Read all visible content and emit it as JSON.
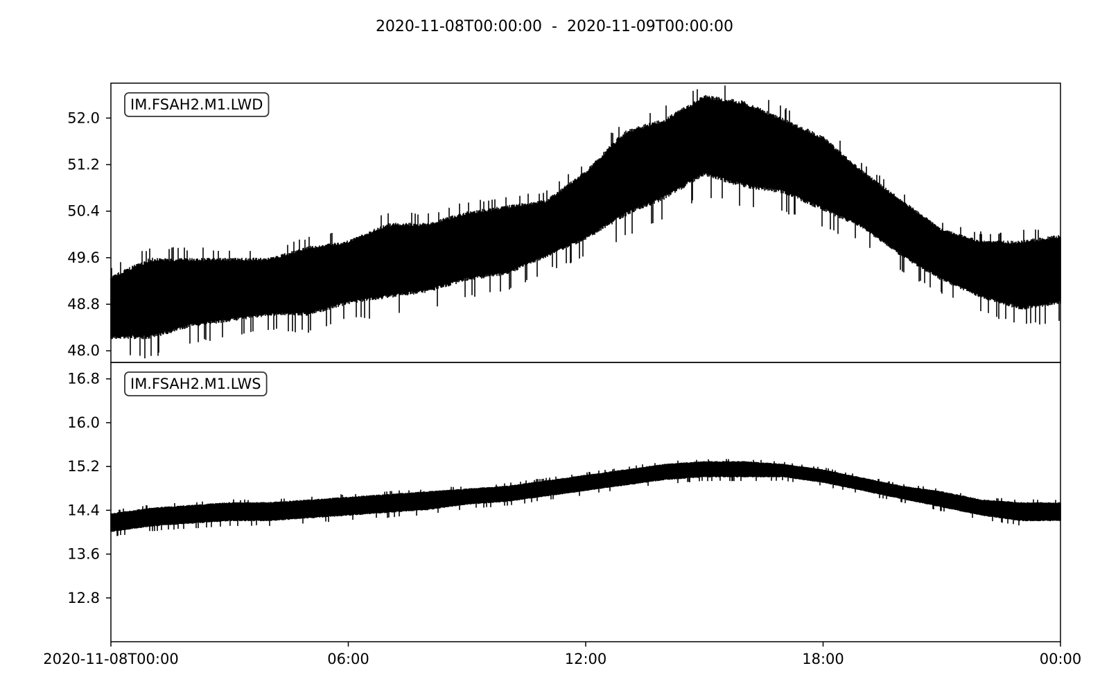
{
  "figure": {
    "title": "2020-11-08T00:00:00  -  2020-11-09T00:00:00"
  },
  "chart_data": [
    {
      "type": "line",
      "series": [
        {
          "name": "IM.FSAH2.M1.LWD"
        }
      ],
      "trace_label": "IM.FSAH2.M1.LWD",
      "x_start": "2020-11-08T00:00:00",
      "x_end": "2020-11-09T00:00:00",
      "xlim_hours": [
        0,
        24
      ],
      "ylim": [
        47.8,
        52.6
      ],
      "y_ticks": [
        "48.0",
        "48.8",
        "49.6",
        "50.4",
        "51.2",
        "52.0"
      ],
      "y_tick_values": [
        48.0,
        48.8,
        49.6,
        50.4,
        51.2,
        52.0
      ],
      "envelope": {
        "hours": [
          0,
          1,
          2,
          3,
          4,
          5,
          6,
          7,
          8,
          9,
          10,
          11,
          12,
          13,
          14,
          15,
          16,
          17,
          18,
          19,
          20,
          21,
          22,
          23,
          24
        ],
        "lower": [
          48.2,
          48.2,
          48.4,
          48.5,
          48.6,
          48.6,
          48.8,
          48.9,
          49.0,
          49.2,
          49.3,
          49.6,
          49.9,
          50.3,
          50.6,
          51.0,
          50.8,
          50.7,
          50.4,
          50.1,
          49.6,
          49.2,
          48.9,
          48.7,
          48.8
        ],
        "upper": [
          49.3,
          49.6,
          49.6,
          49.6,
          49.6,
          49.8,
          49.9,
          50.2,
          50.2,
          50.4,
          50.5,
          50.6,
          51.1,
          51.8,
          52.0,
          52.4,
          52.3,
          52.0,
          51.7,
          51.1,
          50.6,
          50.1,
          49.9,
          49.9,
          50.0
        ]
      },
      "x_tick_labels": [
        "2020-11-08T00:00",
        "06:00",
        "12:00",
        "18:00",
        "00:00"
      ],
      "x_tick_hours": [
        0,
        6,
        12,
        18,
        24
      ]
    },
    {
      "type": "line",
      "series": [
        {
          "name": "IM.FSAH2.M1.LWS"
        }
      ],
      "trace_label": "IM.FSAH2.M1.LWS",
      "x_start": "2020-11-08T00:00:00",
      "x_end": "2020-11-09T00:00:00",
      "xlim_hours": [
        0,
        24
      ],
      "ylim": [
        12.0,
        17.1
      ],
      "y_ticks": [
        "12.8",
        "13.6",
        "14.4",
        "15.2",
        "16.0",
        "16.8"
      ],
      "y_tick_values": [
        12.8,
        13.6,
        14.4,
        15.2,
        16.0,
        16.8
      ],
      "envelope": {
        "hours": [
          0,
          1,
          2,
          3,
          4,
          5,
          6,
          7,
          8,
          9,
          10,
          11,
          12,
          13,
          14,
          15,
          16,
          17,
          18,
          19,
          20,
          21,
          22,
          23,
          24
        ],
        "lower": [
          14.0,
          14.1,
          14.15,
          14.2,
          14.2,
          14.25,
          14.3,
          14.35,
          14.4,
          14.5,
          14.55,
          14.65,
          14.75,
          14.85,
          14.95,
          15.0,
          15.0,
          15.0,
          14.9,
          14.75,
          14.6,
          14.45,
          14.3,
          14.2,
          14.2
        ],
        "upper": [
          14.35,
          14.45,
          14.5,
          14.55,
          14.55,
          14.6,
          14.65,
          14.7,
          14.75,
          14.8,
          14.85,
          14.95,
          15.05,
          15.15,
          15.25,
          15.3,
          15.3,
          15.25,
          15.15,
          15.0,
          14.85,
          14.75,
          14.6,
          14.55,
          14.55
        ]
      },
      "x_tick_labels": [
        "2020-11-08T00:00",
        "06:00",
        "12:00",
        "18:00",
        "00:00"
      ],
      "x_tick_hours": [
        0,
        6,
        12,
        18,
        24
      ]
    }
  ]
}
